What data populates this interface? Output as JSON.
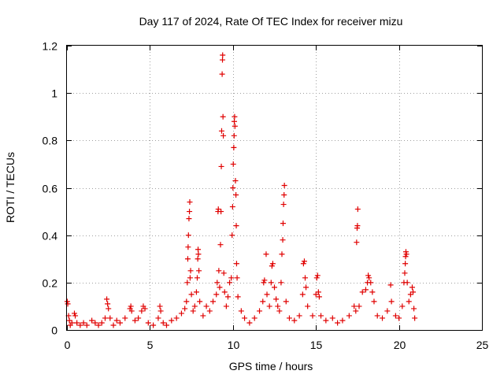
{
  "chart_data": {
    "type": "scatter",
    "title": "Day 117 of 2024, Rate Of TEC Index for receiver mizu",
    "xlabel": "GPS time / hours",
    "ylabel": "ROTI / TECUs",
    "xlim": [
      0,
      25
    ],
    "ylim": [
      0,
      1.2
    ],
    "xticks": [
      "0",
      "5",
      "10",
      "15",
      "20",
      "25"
    ],
    "yticks": [
      "0",
      "0.2",
      "0.4",
      "0.6",
      "0.8",
      "1",
      "1.2"
    ],
    "grid": true,
    "legend": "none",
    "marker": "plus",
    "color": "#e00000",
    "series": [
      {
        "points": [
          [
            0.02,
            0.12
          ],
          [
            0.05,
            0.11
          ],
          [
            0.1,
            0.06
          ],
          [
            0.15,
            0.04
          ],
          [
            0.2,
            0.02
          ],
          [
            0.3,
            0.03
          ],
          [
            0.45,
            0.07
          ],
          [
            0.5,
            0.06
          ],
          [
            0.6,
            0.03
          ],
          [
            0.8,
            0.02
          ],
          [
            1.0,
            0.03
          ],
          [
            1.2,
            0.02
          ],
          [
            1.5,
            0.04
          ],
          [
            1.7,
            0.03
          ],
          [
            1.9,
            0.02
          ],
          [
            2.1,
            0.03
          ],
          [
            2.3,
            0.05
          ],
          [
            2.4,
            0.13
          ],
          [
            2.45,
            0.11
          ],
          [
            2.5,
            0.09
          ],
          [
            2.6,
            0.05
          ],
          [
            2.8,
            0.02
          ],
          [
            3.0,
            0.04
          ],
          [
            3.2,
            0.03
          ],
          [
            3.5,
            0.05
          ],
          [
            3.8,
            0.09
          ],
          [
            3.85,
            0.1
          ],
          [
            3.9,
            0.08
          ],
          [
            4.1,
            0.04
          ],
          [
            4.3,
            0.05
          ],
          [
            4.5,
            0.08
          ],
          [
            4.6,
            0.1
          ],
          [
            4.7,
            0.09
          ],
          [
            4.9,
            0.03
          ],
          [
            5.2,
            0.02
          ],
          [
            5.5,
            0.05
          ],
          [
            5.6,
            0.1
          ],
          [
            5.65,
            0.08
          ],
          [
            5.8,
            0.03
          ],
          [
            6.0,
            0.02
          ],
          [
            6.3,
            0.04
          ],
          [
            6.6,
            0.05
          ],
          [
            6.9,
            0.07
          ],
          [
            7.1,
            0.09
          ],
          [
            7.2,
            0.12
          ],
          [
            7.25,
            0.2
          ],
          [
            7.28,
            0.3
          ],
          [
            7.3,
            0.35
          ],
          [
            7.32,
            0.4
          ],
          [
            7.35,
            0.47
          ],
          [
            7.38,
            0.5
          ],
          [
            7.4,
            0.54
          ],
          [
            7.42,
            0.22
          ],
          [
            7.45,
            0.25
          ],
          [
            7.5,
            0.15
          ],
          [
            7.6,
            0.08
          ],
          [
            7.7,
            0.1
          ],
          [
            7.8,
            0.16
          ],
          [
            7.85,
            0.22
          ],
          [
            7.88,
            0.3
          ],
          [
            7.9,
            0.34
          ],
          [
            7.92,
            0.32
          ],
          [
            7.95,
            0.25
          ],
          [
            8.0,
            0.12
          ],
          [
            8.2,
            0.06
          ],
          [
            8.4,
            0.1
          ],
          [
            8.6,
            0.08
          ],
          [
            8.8,
            0.12
          ],
          [
            9.0,
            0.15
          ],
          [
            9.05,
            0.2
          ],
          [
            9.1,
            0.5
          ],
          [
            9.12,
            0.51
          ],
          [
            9.15,
            0.25
          ],
          [
            9.2,
            0.18
          ],
          [
            9.25,
            0.36
          ],
          [
            9.28,
            0.5
          ],
          [
            9.3,
            0.69
          ],
          [
            9.32,
            0.84
          ],
          [
            9.35,
            1.08
          ],
          [
            9.37,
            1.14
          ],
          [
            9.38,
            1.16
          ],
          [
            9.4,
            0.9
          ],
          [
            9.42,
            0.82
          ],
          [
            9.45,
            0.24
          ],
          [
            9.5,
            0.16
          ],
          [
            9.6,
            0.1
          ],
          [
            9.7,
            0.14
          ],
          [
            9.8,
            0.2
          ],
          [
            9.9,
            0.22
          ],
          [
            9.95,
            0.4
          ],
          [
            9.98,
            0.52
          ],
          [
            10.0,
            0.6
          ],
          [
            10.02,
            0.7
          ],
          [
            10.05,
            0.77
          ],
          [
            10.07,
            0.82
          ],
          [
            10.08,
            0.88
          ],
          [
            10.1,
            0.9
          ],
          [
            10.12,
            0.86
          ],
          [
            10.15,
            0.63
          ],
          [
            10.18,
            0.57
          ],
          [
            10.2,
            0.44
          ],
          [
            10.22,
            0.28
          ],
          [
            10.25,
            0.22
          ],
          [
            10.3,
            0.14
          ],
          [
            10.5,
            0.08
          ],
          [
            10.7,
            0.05
          ],
          [
            11.0,
            0.03
          ],
          [
            11.3,
            0.05
          ],
          [
            11.6,
            0.08
          ],
          [
            11.8,
            0.12
          ],
          [
            11.85,
            0.2
          ],
          [
            11.9,
            0.21
          ],
          [
            12.0,
            0.32
          ],
          [
            12.05,
            0.15
          ],
          [
            12.2,
            0.1
          ],
          [
            12.3,
            0.2
          ],
          [
            12.35,
            0.27
          ],
          [
            12.4,
            0.28
          ],
          [
            12.5,
            0.18
          ],
          [
            12.6,
            0.13
          ],
          [
            12.7,
            0.1
          ],
          [
            12.8,
            0.08
          ],
          [
            12.9,
            0.2
          ],
          [
            12.95,
            0.32
          ],
          [
            13.0,
            0.38
          ],
          [
            13.02,
            0.45
          ],
          [
            13.05,
            0.53
          ],
          [
            13.08,
            0.57
          ],
          [
            13.1,
            0.61
          ],
          [
            13.2,
            0.12
          ],
          [
            13.4,
            0.05
          ],
          [
            13.7,
            0.04
          ],
          [
            14.0,
            0.06
          ],
          [
            14.2,
            0.15
          ],
          [
            14.25,
            0.28
          ],
          [
            14.3,
            0.29
          ],
          [
            14.35,
            0.22
          ],
          [
            14.4,
            0.18
          ],
          [
            14.5,
            0.1
          ],
          [
            14.8,
            0.06
          ],
          [
            15.0,
            0.15
          ],
          [
            15.05,
            0.22
          ],
          [
            15.1,
            0.23
          ],
          [
            15.15,
            0.16
          ],
          [
            15.2,
            0.14
          ],
          [
            15.3,
            0.06
          ],
          [
            15.6,
            0.04
          ],
          [
            16.0,
            0.05
          ],
          [
            16.3,
            0.03
          ],
          [
            16.6,
            0.04
          ],
          [
            17.0,
            0.06
          ],
          [
            17.3,
            0.1
          ],
          [
            17.4,
            0.08
          ],
          [
            17.45,
            0.37
          ],
          [
            17.48,
            0.43
          ],
          [
            17.5,
            0.44
          ],
          [
            17.52,
            0.51
          ],
          [
            17.6,
            0.1
          ],
          [
            17.8,
            0.16
          ],
          [
            18.0,
            0.17
          ],
          [
            18.1,
            0.2
          ],
          [
            18.15,
            0.23
          ],
          [
            18.2,
            0.22
          ],
          [
            18.3,
            0.2
          ],
          [
            18.4,
            0.16
          ],
          [
            18.5,
            0.12
          ],
          [
            18.7,
            0.06
          ],
          [
            19.0,
            0.05
          ],
          [
            19.3,
            0.08
          ],
          [
            19.5,
            0.19
          ],
          [
            19.55,
            0.12
          ],
          [
            19.8,
            0.06
          ],
          [
            20.0,
            0.05
          ],
          [
            20.2,
            0.1
          ],
          [
            20.3,
            0.2
          ],
          [
            20.35,
            0.24
          ],
          [
            20.38,
            0.28
          ],
          [
            20.4,
            0.31
          ],
          [
            20.42,
            0.33
          ],
          [
            20.45,
            0.32
          ],
          [
            20.5,
            0.2
          ],
          [
            20.6,
            0.12
          ],
          [
            20.7,
            0.15
          ],
          [
            20.8,
            0.18
          ],
          [
            20.85,
            0.16
          ],
          [
            20.9,
            0.09
          ],
          [
            20.95,
            0.05
          ]
        ]
      }
    ]
  }
}
